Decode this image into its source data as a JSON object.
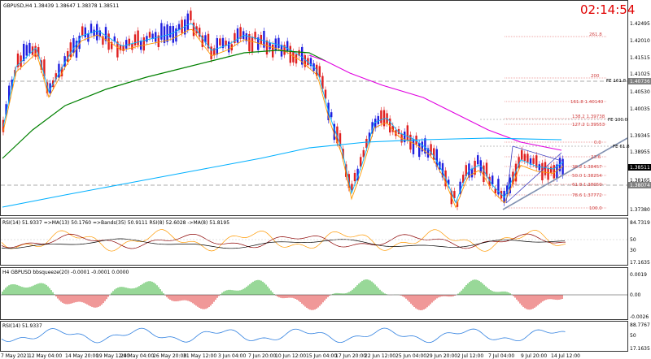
{
  "header": {
    "symbol_info": "GBPUSD,H4  1.38439 1.38647 1.38378 1.38511",
    "countdown": "02:14:54"
  },
  "price_axis": {
    "ticks": [
      "1.42495",
      "1.42010",
      "1.41515",
      "1.41025",
      "1.40530",
      "1.40035",
      "1.39345",
      "1.38955",
      "1.38165",
      "1.37380"
    ],
    "current_price": "1.38511",
    "tag_prices": [
      "1.40736",
      "1.38074"
    ]
  },
  "fib_levels": [
    "261.8",
    "200",
    "161.8 1.40140",
    "138.2 1.39738",
    "127.2 1.39553",
    "0.0",
    "23.6",
    "38.2 1.38457",
    "50.0 1.38254",
    "61.8 1.38050",
    "78.6 1.37772",
    "100.0"
  ],
  "fe_labels": [
    "FE 161.8",
    "FE 100.0",
    "FE 61.8"
  ],
  "indicators": {
    "rsi_bands": {
      "title": "RSI(14) 51.9337 =>MA(13) 50.1760 =>Bands(35) 50.9111 RSI(8) 52.6028 ->MA(8) 51.8195",
      "ticks": [
        "84.7319",
        "50",
        "30",
        "17.1635"
      ]
    },
    "squeeze": {
      "title": "H4 GBPUSD bbsqueeze(20) -0.0001 -0.0001 0.0000",
      "ticks": [
        "0.0019",
        "0.00",
        "-0.0026"
      ]
    },
    "rsi": {
      "title": "RSI(14) 51.9337",
      "ticks": [
        "88.7767",
        "50",
        "17.1635"
      ]
    }
  },
  "time_axis": [
    "7 May 2021",
    "12 May 04:00",
    "14 May 20:00",
    "19 May 12:00",
    "24 May 04:00",
    "26 May 20:00",
    "31 May 12:00",
    "3 Jun 04:00",
    "7 Jun 20:00",
    "10 Jun 12:00",
    "15 Jun 04:00",
    "17 Jun 20:00",
    "22 Jun 12:00",
    "25 Jun 04:00",
    "29 Jun 20:00",
    "2 Jul 12:00",
    "7 Jul 04:00",
    "9 Jul 20:00",
    "14 Jul 12:00"
  ],
  "colors": {
    "bull_candle": "#2020e0",
    "bear_candle": "#e02020",
    "ma_fast": "#00b8ff",
    "ma_mid": "#ff9900",
    "ma_slow": "#008000",
    "ma_magenta": "#e000e0",
    "ma_long": "#00b0ff",
    "squeeze_up": "#30b030",
    "squeeze_down": "#e03030",
    "rsi_line": "#3080e0"
  }
}
